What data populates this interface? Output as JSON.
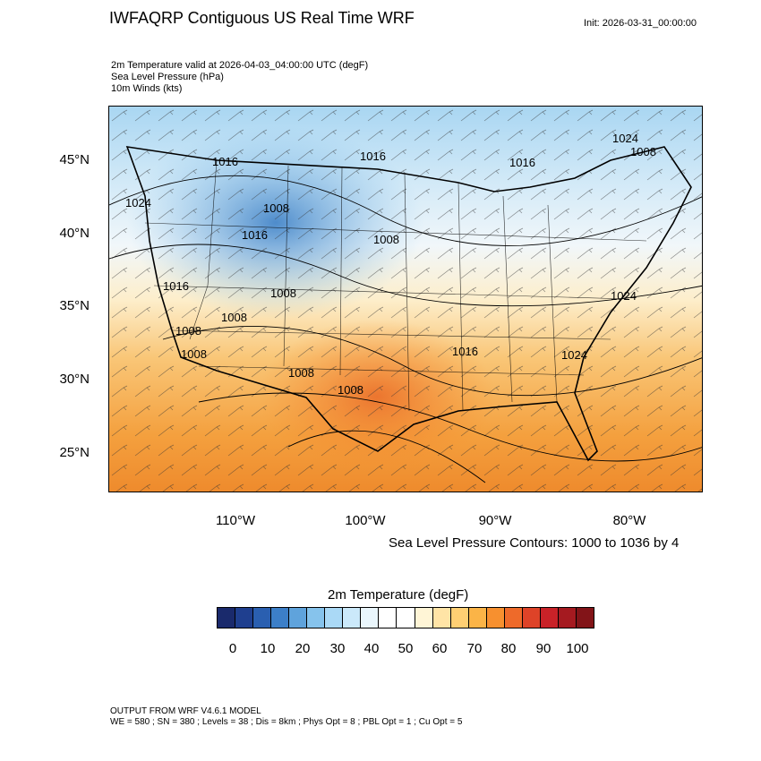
{
  "header": {
    "title": "IWFAQRP Contiguous US Real Time WRF",
    "init": "Init: 2026-03-31_00:00:00"
  },
  "fields": [
    "2m Temperature valid at 2026-04-03_04:00:00 UTC   (degF)",
    "Sea Level Pressure   (hPa)",
    "10m Winds   (kts)"
  ],
  "map": {
    "latitude_labels": [
      "45°N",
      "40°N",
      "35°N",
      "30°N",
      "25°N"
    ],
    "longitude_labels": [
      "110°W",
      "100°W",
      "90°W",
      "80°W"
    ],
    "isobar_labels": [
      "1016",
      "1016",
      "1024",
      "1016",
      "1008",
      "1024",
      "1008",
      "1016",
      "1008",
      "1016",
      "1008",
      "1008",
      "1024",
      "1008",
      "1016",
      "1024",
      "1008",
      "1008",
      "1008"
    ],
    "land_color": "#f6b85c",
    "ocean_color": "#f4a035"
  },
  "contour_note": "Sea Level Pressure Contours: 1000 to 1036 by 4",
  "colorbar": {
    "title": "2m Temperature  (degF)",
    "colors": [
      "#1a2a6c",
      "#1f3f8f",
      "#2a5fb0",
      "#3c7fc8",
      "#5fa3dc",
      "#86c3ec",
      "#aad9f6",
      "#cbe9fa",
      "#eaf6fc",
      "#ffffff",
      "#ffffff",
      "#fff5d6",
      "#ffe4a6",
      "#ffcf73",
      "#fbb447",
      "#f7902f",
      "#ee6a2a",
      "#de4328",
      "#c92228",
      "#a51a20",
      "#821418"
    ],
    "tick_labels": [
      "0",
      "10",
      "20",
      "30",
      "40",
      "50",
      "60",
      "70",
      "80",
      "90",
      "100"
    ]
  },
  "footer": {
    "line1": "OUTPUT FROM WRF V4.6.1 MODEL",
    "line2": "WE = 580 ; SN = 380 ; Levels = 38 ; Dis = 8km ; Phys Opt = 8 ; PBL Opt = 1 ; Cu Opt = 5"
  }
}
